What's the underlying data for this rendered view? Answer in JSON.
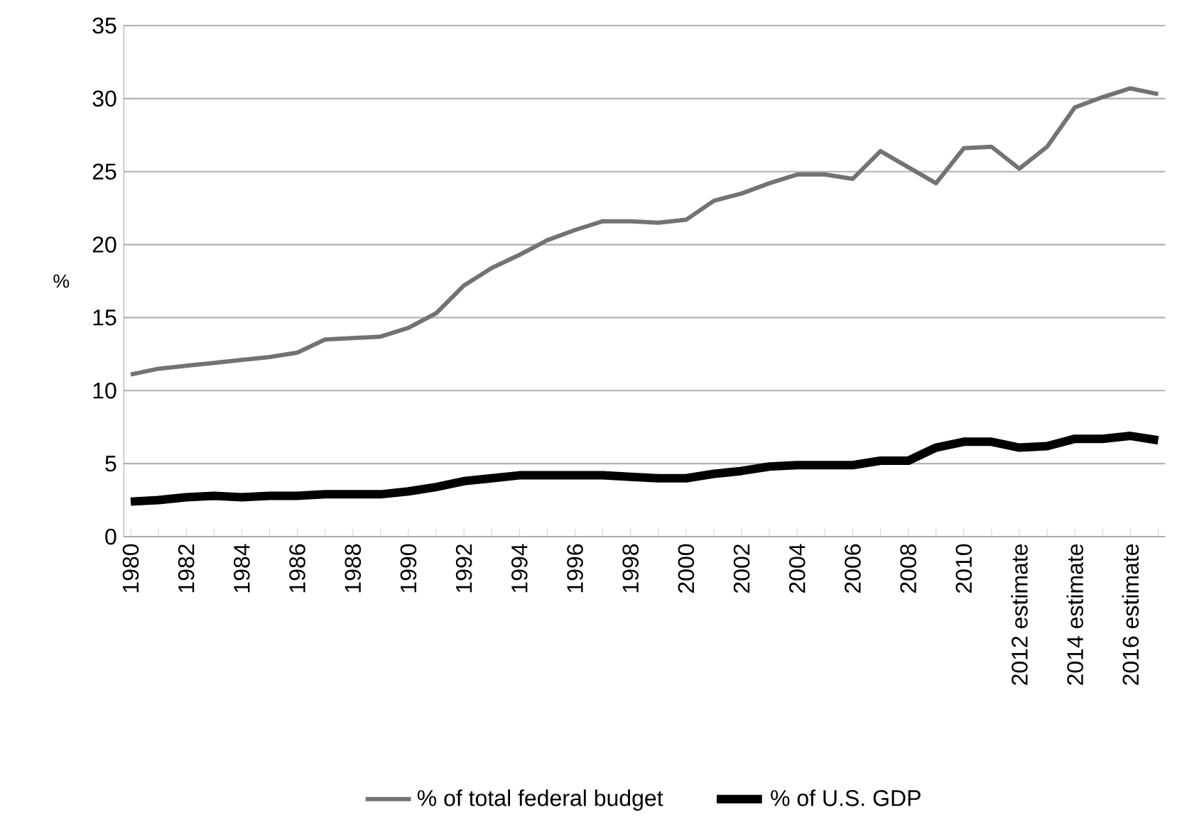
{
  "chart_data": {
    "type": "line",
    "ylabel": "%",
    "categories": [
      "1980",
      null,
      "1982",
      null,
      "1984",
      null,
      "1986",
      null,
      "1988",
      null,
      "1990",
      null,
      "1992",
      null,
      "1994",
      null,
      "1996",
      null,
      "1998",
      null,
      "2000",
      null,
      "2002",
      null,
      "2004",
      null,
      "2006",
      null,
      "2008",
      null,
      "2010",
      null,
      "2012 estimate",
      null,
      "2014 estimate",
      null,
      "2016 estimate",
      null
    ],
    "series": [
      {
        "name": "% of total federal budget",
        "color": "#737373",
        "values": [
          11.1,
          11.5,
          11.7,
          11.9,
          12.1,
          12.3,
          12.6,
          13.5,
          13.6,
          13.7,
          14.3,
          15.3,
          17.2,
          18.4,
          19.3,
          20.3,
          21.0,
          21.6,
          21.6,
          21.5,
          21.7,
          23.0,
          23.5,
          24.2,
          24.8,
          24.8,
          24.5,
          26.4,
          25.3,
          24.2,
          26.6,
          26.7,
          25.2,
          26.7,
          29.4,
          30.1,
          30.7,
          30.3
        ]
      },
      {
        "name": "% of U.S. GDP",
        "color": "#000000",
        "values": [
          2.4,
          2.5,
          2.7,
          2.8,
          2.7,
          2.8,
          2.8,
          2.9,
          2.9,
          2.9,
          3.1,
          3.4,
          3.8,
          4.0,
          4.2,
          4.2,
          4.2,
          4.2,
          4.1,
          4.0,
          4.0,
          4.3,
          4.5,
          4.8,
          4.9,
          4.9,
          4.9,
          5.2,
          5.2,
          6.1,
          6.5,
          6.5,
          6.1,
          6.2,
          6.7,
          6.7,
          6.9,
          6.6
        ]
      }
    ],
    "ylim": [
      0,
      35
    ],
    "yticks": [
      0,
      5,
      10,
      15,
      20,
      25,
      30,
      35
    ],
    "grid": "y",
    "legend": "bottom"
  }
}
